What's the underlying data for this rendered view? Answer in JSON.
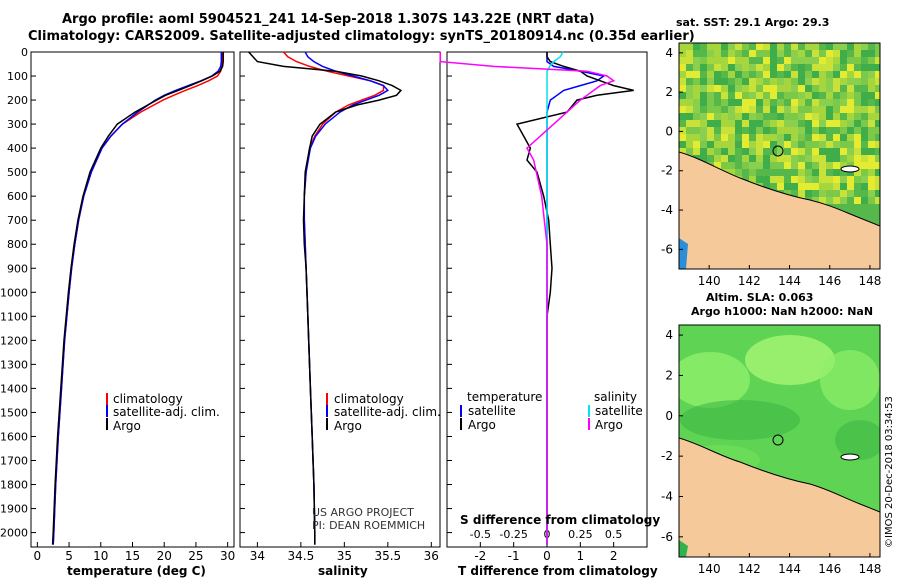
{
  "header": {
    "line1": "Argo profile: aoml 5904521_241 14-Sep-2018 1.307S 143.22E (NRT data)",
    "line2": "Climatology: CARS2009. Satellite-adjusted climatology: synTS_20180914.nc (0.35d earlier)"
  },
  "depth_ticks": [
    "0",
    "100",
    "200",
    "300",
    "400",
    "500",
    "600",
    "700",
    "800",
    "900",
    "1000",
    "1100",
    "1200",
    "1300",
    "1400",
    "1500",
    "1600",
    "1700",
    "1800",
    "1900",
    "2000"
  ],
  "colors": {
    "climatology": "#ff0000",
    "satellite": "#0000ff",
    "argo": "#000000",
    "sat_s": "#00e5ee",
    "argo_s": "#ff00ff",
    "land": "#f6c99b"
  },
  "chart_data": [
    {
      "type": "line",
      "name": "temperature",
      "xlabel": "temperature (deg C)",
      "x_ticks": [
        "0",
        "5",
        "10",
        "15",
        "20",
        "25",
        "30"
      ],
      "xlim": [
        -1,
        31
      ],
      "ylim": [
        2060,
        0
      ],
      "legend": [
        "climatology",
        "satellite-adj. clim.",
        "Argo"
      ],
      "depth": [
        0,
        20,
        40,
        60,
        80,
        100,
        120,
        140,
        160,
        180,
        200,
        250,
        300,
        350,
        400,
        500,
        600,
        700,
        800,
        900,
        1000,
        1200,
        1400,
        1600,
        1800,
        2000,
        2050
      ],
      "series": [
        {
          "name": "climatology",
          "values": [
            29.2,
            29.2,
            29.2,
            29.1,
            28.9,
            28.4,
            27.0,
            25.3,
            23.3,
            21.5,
            19.8,
            16.3,
            13.4,
            11.6,
            10.2,
            8.5,
            7.3,
            6.5,
            5.9,
            5.4,
            5.0,
            4.3,
            3.8,
            3.3,
            2.9,
            2.6,
            2.5
          ]
        },
        {
          "name": "satellite-adj. clim.",
          "values": [
            29.0,
            29.0,
            29.0,
            28.9,
            28.5,
            27.5,
            25.8,
            23.8,
            21.8,
            20.0,
            18.6,
            15.8,
            13.4,
            11.6,
            10.2,
            8.5,
            7.3,
            6.5,
            5.9,
            5.4,
            5.0,
            4.3,
            3.8,
            3.3,
            2.9,
            2.6,
            2.5
          ]
        },
        {
          "name": "Argo",
          "values": [
            29.3,
            29.3,
            29.3,
            29.2,
            28.8,
            27.6,
            25.9,
            24.1,
            22.2,
            20.2,
            18.8,
            15.4,
            12.6,
            11.2,
            10.0,
            8.3,
            7.2,
            6.4,
            5.8,
            5.3,
            4.9,
            4.2,
            3.7,
            3.2,
            2.8,
            2.5,
            2.4
          ]
        }
      ]
    },
    {
      "type": "line",
      "name": "salinity",
      "xlabel": "salinity",
      "x_ticks": [
        "34",
        "34.5",
        "35",
        "35.5",
        "36"
      ],
      "xlim": [
        33.8,
        36.1
      ],
      "ylim": [
        2060,
        0
      ],
      "legend": [
        "climatology",
        "satellite-adj. clim.",
        "Argo"
      ],
      "annotation": [
        "US ARGO PROJECT",
        "PI: DEAN ROEMMICH"
      ],
      "depth": [
        0,
        20,
        40,
        60,
        80,
        100,
        120,
        140,
        160,
        180,
        200,
        220,
        250,
        300,
        350,
        400,
        500,
        600,
        700,
        800,
        900,
        1000,
        1200,
        1400,
        1600,
        1800,
        2000,
        2050
      ],
      "series": [
        {
          "name": "climatology",
          "values": [
            34.3,
            34.35,
            34.45,
            34.6,
            34.8,
            35.05,
            35.3,
            35.45,
            35.45,
            35.35,
            35.2,
            35.05,
            34.9,
            34.75,
            34.66,
            34.6,
            34.56,
            34.54,
            34.54,
            34.55,
            34.56,
            34.57,
            34.59,
            34.61,
            34.63,
            34.65,
            34.66,
            34.66
          ]
        },
        {
          "name": "satellite-adj. clim.",
          "values": [
            34.55,
            34.58,
            34.65,
            34.75,
            34.9,
            35.1,
            35.3,
            35.45,
            35.5,
            35.4,
            35.25,
            35.1,
            34.95,
            34.78,
            34.67,
            34.61,
            34.56,
            34.54,
            34.54,
            34.55,
            34.56,
            34.57,
            34.59,
            34.61,
            34.63,
            34.65,
            34.66,
            34.66
          ]
        },
        {
          "name": "Argo",
          "values": [
            33.9,
            33.95,
            34.0,
            34.3,
            34.9,
            35.2,
            35.4,
            35.55,
            35.65,
            35.6,
            35.4,
            35.15,
            34.9,
            34.72,
            34.63,
            34.6,
            34.55,
            34.54,
            34.53,
            34.54,
            34.56,
            34.57,
            34.59,
            34.61,
            34.63,
            34.65,
            34.66,
            34.66
          ]
        }
      ]
    },
    {
      "type": "line",
      "name": "difference",
      "xlabel": "T difference from climatology",
      "x_ticks": [
        "-2",
        "-1",
        "0",
        "1",
        "2"
      ],
      "xlim": [
        -3,
        3
      ],
      "ylim": [
        2060,
        0
      ],
      "s_title": "S difference from climatology",
      "s_ticks": [
        "-0.5",
        "-0.25",
        "0",
        "0.25",
        "0.5"
      ],
      "legend": {
        "temperature_title": "temperature",
        "salinity_title": "salinity",
        "satellite": "satellite",
        "argo": "Argo"
      },
      "depth": [
        0,
        20,
        40,
        60,
        80,
        100,
        120,
        140,
        160,
        180,
        200,
        250,
        300,
        350,
        400,
        450,
        500,
        600,
        700,
        800,
        900,
        1000,
        1100,
        1200,
        1400,
        1600,
        1800,
        2000,
        2050
      ],
      "series": [
        {
          "name": "T satellite",
          "values": [
            0,
            0,
            0,
            0.2,
            1.0,
            1.7,
            1.5,
            1.0,
            0.5,
            0.3,
            0.1,
            0,
            0,
            0,
            0,
            0,
            0,
            0,
            0,
            0,
            0,
            0,
            0,
            0,
            0,
            0,
            0,
            0,
            0
          ]
        },
        {
          "name": "T Argo",
          "values": [
            0,
            0,
            0.1,
            0.5,
            1.0,
            1.2,
            1.6,
            2.0,
            2.6,
            1.5,
            0.9,
            0.6,
            -0.9,
            -0.7,
            -0.5,
            -0.6,
            -0.3,
            -0.1,
            0.05,
            0.1,
            0.15,
            0.1,
            0,
            0,
            0,
            0,
            0,
            0,
            0
          ]
        },
        {
          "name": "S satellite",
          "values": [
            0.12,
            0.1,
            0.05,
            0.02,
            0,
            0,
            0,
            0,
            0,
            0,
            0,
            0,
            0,
            0,
            0,
            0,
            0,
            0,
            0,
            0,
            0,
            0,
            0,
            0,
            0,
            0,
            0,
            0,
            0
          ]
        },
        {
          "name": "S Argo",
          "values": [
            -0.8,
            -0.8,
            -0.8,
            -0.4,
            0.3,
            0.45,
            0.5,
            0.4,
            0.35,
            0.3,
            0.25,
            0.15,
            0.05,
            -0.05,
            -0.15,
            -0.1,
            -0.08,
            -0.04,
            -0.02,
            0,
            0,
            0,
            0,
            0,
            0,
            0,
            0,
            0,
            0
          ]
        }
      ]
    },
    {
      "type": "heatmap",
      "name": "sst-map",
      "title": "sat. SST: 29.1 Argo: 29.3",
      "x_ticks": [
        "140",
        "142",
        "144",
        "146",
        "148"
      ],
      "y_ticks": [
        "4",
        "2",
        "0",
        "-2",
        "-4",
        "-6"
      ],
      "xlim": [
        138.5,
        148.5
      ],
      "ylim": [
        -7,
        4.5
      ],
      "marker_lonlat": [
        143.22,
        -1.31
      ]
    },
    {
      "type": "heatmap",
      "name": "sla-map",
      "title": "Altim. SLA: 0.063",
      "subtitle": "Argo h1000: NaN h2000: NaN",
      "x_ticks": [
        "140",
        "142",
        "144",
        "146",
        "148"
      ],
      "y_ticks": [
        "4",
        "2",
        "0",
        "-2",
        "-4",
        "-6"
      ],
      "xlim": [
        138.5,
        148.5
      ],
      "ylim": [
        -7,
        4.5
      ],
      "marker_lonlat": [
        143.22,
        -1.31
      ]
    }
  ],
  "side_stamp": "©IMOS 20-Dec-2018 03:34:53"
}
